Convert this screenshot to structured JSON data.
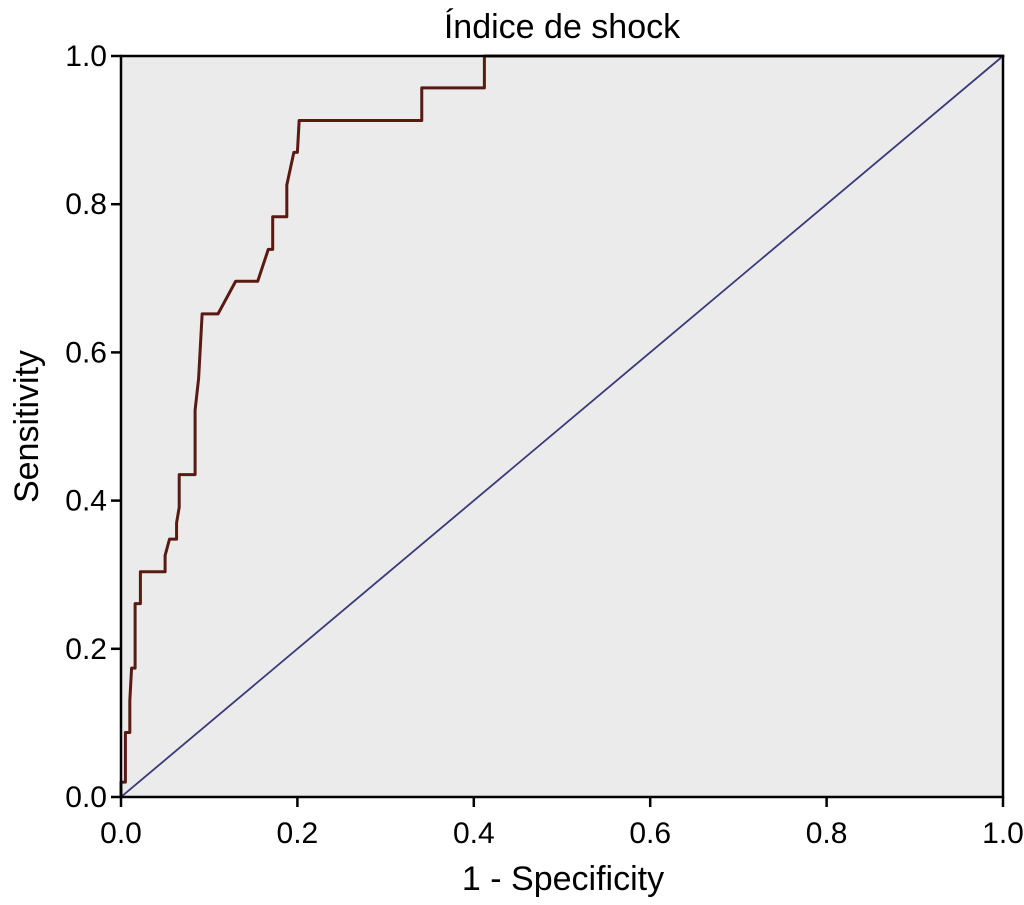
{
  "chart_data": {
    "type": "line",
    "title": "Índice de shock",
    "xlabel": "1 - Specificity",
    "ylabel": "Sensitivity",
    "xlim": [
      0,
      1
    ],
    "ylim": [
      0,
      1
    ],
    "x_ticks": [
      0.0,
      0.2,
      0.4,
      0.6,
      0.8,
      1.0
    ],
    "x_tick_labels": [
      "0.0",
      "0.2",
      "0.4",
      "0.6",
      "0.8",
      "1.0"
    ],
    "y_ticks": [
      0.0,
      0.2,
      0.4,
      0.6,
      0.8,
      1.0
    ],
    "y_tick_labels": [
      "0.0",
      "0.2",
      "0.4",
      "0.6",
      "0.8",
      "1.0"
    ],
    "grid": false,
    "legend": "none",
    "series": [
      {
        "color": "#5a1a12",
        "style": "step",
        "points": [
          [
            0.0,
            0.0
          ],
          [
            0.0,
            0.02
          ],
          [
            0.005,
            0.02
          ],
          [
            0.005,
            0.087
          ],
          [
            0.01,
            0.087
          ],
          [
            0.01,
            0.13
          ],
          [
            0.012,
            0.174
          ],
          [
            0.016,
            0.174
          ],
          [
            0.016,
            0.261
          ],
          [
            0.022,
            0.261
          ],
          [
            0.022,
            0.304
          ],
          [
            0.05,
            0.304
          ],
          [
            0.05,
            0.326
          ],
          [
            0.055,
            0.348
          ],
          [
            0.063,
            0.348
          ],
          [
            0.063,
            0.37
          ],
          [
            0.066,
            0.391
          ],
          [
            0.066,
            0.435
          ],
          [
            0.084,
            0.435
          ],
          [
            0.084,
            0.522
          ],
          [
            0.088,
            0.565
          ],
          [
            0.092,
            0.652
          ],
          [
            0.11,
            0.652
          ],
          [
            0.13,
            0.696
          ],
          [
            0.155,
            0.696
          ],
          [
            0.167,
            0.739
          ],
          [
            0.172,
            0.739
          ],
          [
            0.172,
            0.783
          ],
          [
            0.188,
            0.783
          ],
          [
            0.188,
            0.826
          ],
          [
            0.196,
            0.87
          ],
          [
            0.2,
            0.87
          ],
          [
            0.202,
            0.913
          ],
          [
            0.341,
            0.913
          ],
          [
            0.341,
            0.957
          ],
          [
            0.412,
            0.957
          ],
          [
            0.412,
            1.0
          ],
          [
            1.0,
            1.0
          ]
        ]
      },
      {
        "color": "#3a3a7a",
        "style": "diagonal",
        "points": [
          [
            0.0,
            0.0
          ],
          [
            1.0,
            1.0
          ]
        ]
      }
    ],
    "colors": {
      "plot_background": "#ebebeb",
      "axis": "#000000"
    }
  }
}
